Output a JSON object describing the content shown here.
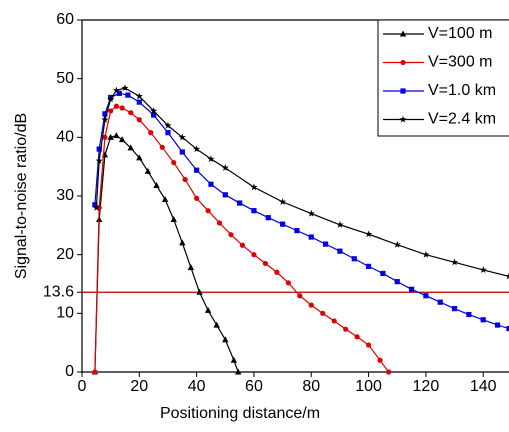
{
  "chart_data": {
    "type": "line",
    "xlabel": "Positioning distance/m",
    "ylabel": "Signal-to-noise ratio/dB",
    "xlim": [
      0,
      149
    ],
    "xticks": [
      0,
      20,
      40,
      60,
      80,
      100,
      120,
      140
    ],
    "ylim": [
      0,
      60
    ],
    "yticks": [
      0,
      10,
      13.6,
      20,
      30,
      40,
      50,
      60
    ],
    "reference_line": {
      "value": 13.6,
      "color": "#b00000"
    },
    "legend": "upper right",
    "series": [
      {
        "name": "V=100 m",
        "color": "#000000",
        "marker": "triangle",
        "x": [
          4.5,
          6,
          8,
          10,
          12,
          14,
          17,
          20,
          23,
          26,
          29,
          32,
          35,
          38,
          41,
          44,
          47,
          50,
          53,
          54.5
        ],
        "values": [
          0,
          26,
          37,
          40,
          40.3,
          39.6,
          38.2,
          36.5,
          34.2,
          31.8,
          29.4,
          26,
          22,
          17.8,
          13.6,
          10.5,
          8,
          5.5,
          2,
          0
        ]
      },
      {
        "name": "V=300 m",
        "color": "#dd0000",
        "marker": "circle",
        "x": [
          4.5,
          6,
          8,
          10,
          12,
          14,
          17,
          20,
          24,
          28,
          32,
          36,
          40,
          44,
          48,
          52,
          56,
          60,
          64,
          68,
          72,
          76,
          80,
          84,
          88,
          92,
          96,
          100,
          104,
          107
        ],
        "values": [
          0,
          28,
          40,
          44.5,
          45.3,
          45,
          44.2,
          43,
          40.8,
          38.3,
          35.7,
          32.8,
          29.6,
          27.5,
          25.4,
          23.4,
          21.6,
          20,
          18.5,
          17,
          15.2,
          13,
          11.4,
          10,
          8.7,
          7.3,
          6,
          4.6,
          2,
          0
        ]
      },
      {
        "name": "V=1.0 km",
        "color": "#0000e0",
        "marker": "square",
        "x": [
          4.5,
          6,
          8,
          10,
          13,
          16,
          20,
          25,
          30,
          35,
          40,
          45,
          50,
          55,
          60,
          65,
          70,
          75,
          80,
          85,
          90,
          95,
          100,
          105,
          110,
          115,
          120,
          125,
          130,
          135,
          140,
          145,
          149
        ],
        "values": [
          28.5,
          38,
          44,
          46.8,
          47.5,
          47.2,
          46,
          43.8,
          40.8,
          37.5,
          34.4,
          32,
          30.2,
          28.8,
          27.5,
          26.3,
          25.2,
          24.1,
          23,
          21.8,
          20.6,
          19.3,
          18,
          16.8,
          15.4,
          14.1,
          13,
          11.9,
          10.8,
          9.8,
          8.9,
          8,
          7.4
        ]
      },
      {
        "name": "V=2.4 km",
        "color": "#000000",
        "marker": "star",
        "x": [
          5,
          6,
          8,
          10,
          12,
          15,
          20,
          25,
          30,
          35,
          40,
          45,
          50,
          60,
          70,
          80,
          90,
          100,
          110,
          120,
          130,
          140,
          149
        ],
        "values": [
          28,
          36,
          43,
          46.5,
          48,
          48.4,
          47,
          44.5,
          42,
          40,
          38,
          36.3,
          34.8,
          31.5,
          29,
          27,
          25.1,
          23.5,
          21.7,
          20,
          18.7,
          17.4,
          16.3
        ]
      }
    ]
  }
}
